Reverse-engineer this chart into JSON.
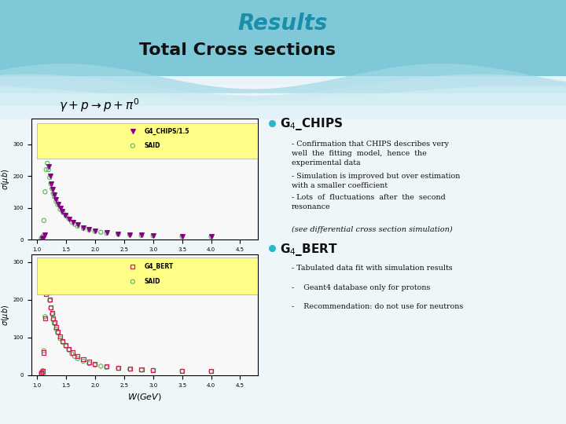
{
  "title": "Results",
  "subtitle": "Total Cross sections",
  "title_color": "#1A8FAA",
  "subtitle_color": "#111111",
  "bg_top": "#7EC8D8",
  "bg_wave1": "#A0D8E5",
  "bg_wave2": "#C0E5EE",
  "bg_main": "#E8F4F8",
  "formula": "$\\gamma + p \\rightarrow p + \\pi^{0}$",
  "bullet_color": "#29B8C8",
  "chips_header": "G$_4$_CHIPS",
  "bert_header": "G$_4$_BERT",
  "chips_sub1": "Confirmation that CHIPS describes very\nwell  the  fitting  model,  hence  the\nexperimental data",
  "chips_sub2": "Simulation is improved but over estimation\nwith a smaller coefficient",
  "chips_sub3": "Lots  of  fluctuations  after  the  second\nresonance",
  "chips_note": "(see differential cross section simulation)",
  "bert_sub1": "Tabulated data fit with simulation results",
  "bert_sub2": "Geant4 database only for protons",
  "bert_sub3": "Recommendation: do not use for neutrons",
  "legend_bg": "#FFFF88",
  "chips_color": "#880088",
  "said_color": "#66BB66",
  "bert_color": "#CC2255",
  "ylabel": "$\\sigma(\\mu b)$",
  "xlabel": "$W(GeV)$"
}
